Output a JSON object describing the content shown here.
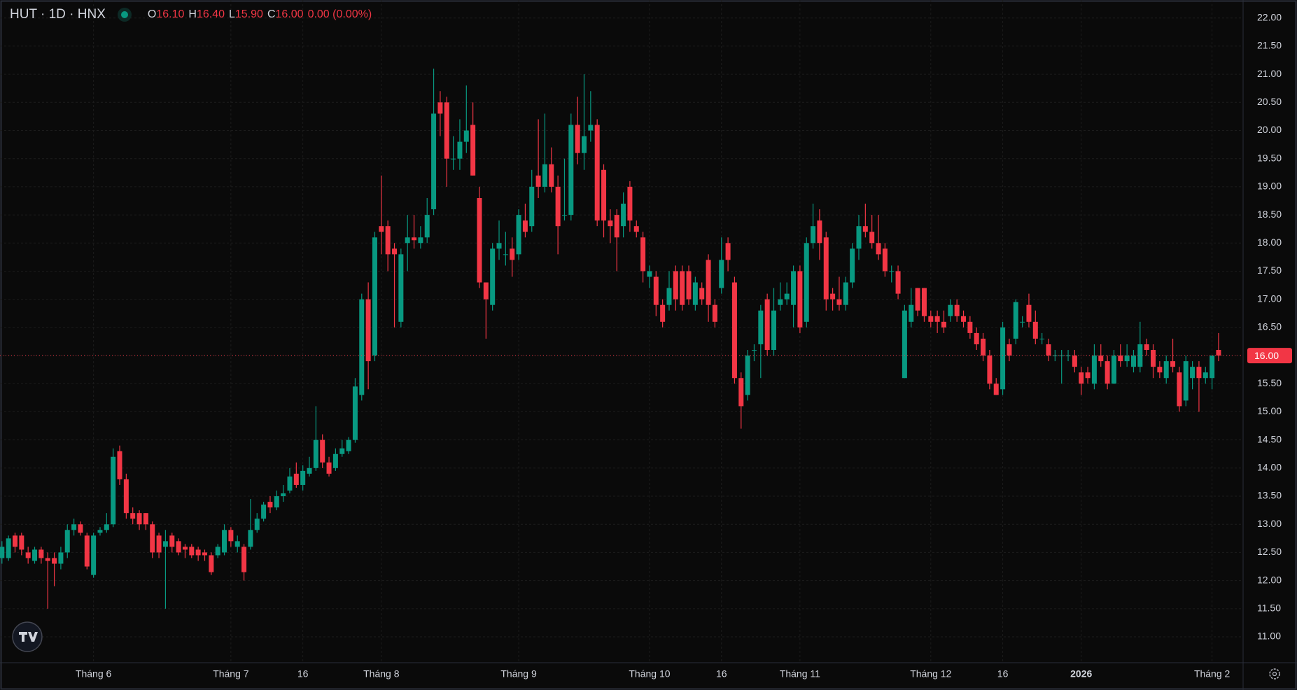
{
  "chart_data": {
    "type": "candlestick",
    "title": "HUT · 1D · HNX",
    "legend": {
      "o_label": "O",
      "open": "16.10",
      "h_label": "H",
      "high": "16.40",
      "l_label": "L",
      "low": "15.90",
      "c_label": "C",
      "close": "16.00",
      "change": "0.00 (0.00%)"
    },
    "up_color": "#089981",
    "down_color": "#f23645",
    "ylim": [
      10.54,
      22.32
    ],
    "yticks": [
      {
        "value": 11,
        "label": "11.00"
      },
      {
        "value": 11.5,
        "label": "11.50"
      },
      {
        "value": 12,
        "label": "12.00"
      },
      {
        "value": 12.5,
        "label": "12.50"
      },
      {
        "value": 13,
        "label": "13.00"
      },
      {
        "value": 13.5,
        "label": "13.50"
      },
      {
        "value": 14,
        "label": "14.00"
      },
      {
        "value": 14.5,
        "label": "14.50"
      },
      {
        "value": 15,
        "label": "15.00"
      },
      {
        "value": 15.5,
        "label": "15.50"
      },
      {
        "value": 16,
        "label": "16.00"
      },
      {
        "value": 16.5,
        "label": "16.50"
      },
      {
        "value": 17,
        "label": "17.00"
      },
      {
        "value": 17.5,
        "label": "17.50"
      },
      {
        "value": 18,
        "label": "18.00"
      },
      {
        "value": 18.5,
        "label": "18.50"
      },
      {
        "value": 19,
        "label": "19.00"
      },
      {
        "value": 19.5,
        "label": "19.50"
      },
      {
        "value": 20,
        "label": "20.00"
      },
      {
        "value": 20.5,
        "label": "20.50"
      },
      {
        "value": 21,
        "label": "21.00"
      },
      {
        "value": 21.5,
        "label": "21.50"
      },
      {
        "value": 22,
        "label": "22.00"
      }
    ],
    "grid": true,
    "last_price": {
      "value": 16,
      "label": "16.00"
    },
    "categories": [
      null,
      null,
      null,
      null,
      null,
      null,
      null,
      null,
      null,
      null,
      null,
      null,
      null,
      null,
      "Tháng 6",
      null,
      null,
      null,
      null,
      null,
      null,
      null,
      null,
      null,
      null,
      null,
      null,
      null,
      null,
      null,
      null,
      null,
      null,
      null,
      null,
      "Tháng 7",
      null,
      null,
      null,
      null,
      null,
      null,
      null,
      null,
      null,
      null,
      "16",
      null,
      null,
      null,
      null,
      null,
      null,
      null,
      null,
      null,
      null,
      null,
      "Tháng 8",
      null,
      null,
      null,
      null,
      null,
      null,
      null,
      null,
      null,
      null,
      null,
      null,
      null,
      null,
      null,
      null,
      null,
      null,
      null,
      null,
      "Tháng 9",
      null,
      null,
      null,
      null,
      null,
      null,
      null,
      null,
      null,
      null,
      null,
      null,
      null,
      null,
      null,
      null,
      null,
      null,
      null,
      "Tháng 10",
      null,
      null,
      null,
      null,
      null,
      null,
      null,
      null,
      null,
      null,
      "16",
      null,
      null,
      null,
      null,
      null,
      null,
      null,
      null,
      null,
      null,
      null,
      "Tháng 11",
      null,
      null,
      null,
      null,
      null,
      null,
      null,
      null,
      null,
      null,
      null,
      null,
      null,
      null,
      null,
      null,
      null,
      null,
      null,
      "Tháng 12",
      null,
      null,
      null,
      null,
      null,
      null,
      null,
      null,
      null,
      null,
      "16",
      null,
      null,
      null,
      null,
      null,
      null,
      null,
      null,
      null,
      null,
      null,
      "2026",
      null,
      null,
      null,
      null,
      null,
      null,
      null,
      null,
      null,
      null,
      null,
      null,
      null,
      null,
      null,
      null,
      null,
      null,
      null,
      "Tháng 2",
      null
    ],
    "open": [
      12.4,
      12.4,
      12.8,
      12.8,
      12.5,
      12.35,
      12.55,
      12.4,
      12.4,
      12.3,
      12.5,
      12.9,
      13.0,
      12.8,
      12.1,
      12.85,
      12.9,
      13.0,
      14.3,
      13.8,
      13.2,
      13.2,
      13.2,
      13.0,
      12.8,
      12.6,
      12.8,
      12.7,
      12.6,
      12.6,
      12.55,
      12.5,
      12.45,
      12.45,
      12.5,
      12.9,
      12.6,
      12.6,
      12.6,
      12.9,
      13.1,
      13.4,
      13.3,
      13.5,
      13.6,
      13.9,
      13.7,
      13.9,
      14.0,
      14.5,
      14.1,
      14.0,
      14.25,
      14.3,
      14.5,
      15.3,
      17.0,
      16.0,
      18.3,
      18.3,
      17.9,
      16.6,
      18.0,
      18.1,
      18.0,
      18.1,
      18.6,
      20.5,
      20.5,
      19.5,
      19.5,
      19.8,
      20.1,
      18.8,
      17.3,
      16.9,
      17.9,
      17.8,
      17.9,
      17.8,
      18.4,
      18.3,
      19.2,
      19.0,
      19.4,
      19.0,
      18.5,
      18.5,
      20.1,
      19.6,
      20.0,
      20.1,
      19.3,
      18.4,
      18.5,
      18.3,
      19.0,
      18.3,
      18.1,
      17.4,
      17.4,
      16.9,
      16.9,
      17.5,
      17.5,
      17.5,
      16.9,
      17.2,
      17.7,
      16.9,
      17.2,
      18.0,
      17.3,
      15.6,
      15.3,
      16.1,
      16.2,
      17.0,
      16.1,
      16.9,
      17.0,
      16.9,
      17.5,
      16.6,
      18.0,
      18.4,
      18.1,
      17.1,
      17.0,
      16.9,
      17.3,
      17.9,
      18.3,
      18.2,
      18.0,
      17.9,
      17.5,
      17.5,
      15.6,
      16.6,
      17.2,
      17.2,
      16.7,
      16.7,
      16.6,
      16.7,
      16.9,
      16.7,
      16.6,
      16.4,
      16.3,
      16.0,
      15.5,
      15.4,
      16.2,
      16.3,
      16.6,
      16.9,
      16.6,
      16.3,
      16.2,
      16.0,
      16.0,
      16.0,
      16.0,
      15.7,
      15.7,
      15.5,
      16.0,
      15.9,
      15.5,
      16.0,
      15.9,
      15.8,
      15.8,
      16.2,
      16.1,
      15.8,
      15.6,
      15.9,
      15.7,
      15.2,
      15.6,
      15.8,
      15.6,
      15.6,
      16.1
    ],
    "high": [
      12.7,
      12.8,
      12.85,
      12.85,
      12.6,
      12.6,
      12.6,
      12.5,
      12.5,
      12.6,
      13.0,
      13.1,
      13.05,
      12.85,
      12.85,
      12.95,
      13.2,
      14.35,
      14.4,
      13.9,
      13.3,
      13.25,
      13.2,
      13.05,
      12.85,
      12.9,
      12.85,
      12.75,
      12.65,
      12.65,
      12.6,
      12.55,
      12.5,
      12.65,
      13.0,
      12.95,
      12.8,
      12.65,
      13.45,
      13.2,
      13.4,
      13.5,
      13.6,
      13.7,
      14.0,
      14.1,
      14.05,
      14.2,
      15.1,
      14.6,
      14.2,
      14.35,
      14.5,
      14.55,
      15.6,
      17.1,
      17.3,
      18.2,
      19.2,
      18.4,
      18.0,
      17.9,
      18.5,
      18.5,
      18.3,
      18.8,
      21.1,
      20.7,
      20.6,
      19.9,
      20.2,
      20.8,
      20.5,
      19.0,
      17.3,
      18.0,
      18.4,
      18.2,
      18.1,
      18.6,
      18.7,
      19.3,
      20.2,
      20.3,
      19.7,
      19.2,
      19.5,
      20.3,
      20.6,
      21.0,
      20.7,
      20.2,
      19.4,
      18.6,
      18.6,
      18.9,
      19.1,
      18.4,
      18.2,
      17.6,
      17.5,
      17.0,
      17.5,
      17.6,
      17.6,
      17.6,
      17.4,
      17.3,
      17.8,
      17.0,
      18.1,
      18.1,
      17.4,
      15.7,
      16.1,
      16.2,
      16.9,
      17.1,
      17.2,
      17.3,
      17.3,
      17.6,
      17.6,
      18.1,
      18.7,
      18.6,
      18.2,
      17.2,
      17.4,
      17.4,
      18.0,
      18.5,
      18.7,
      18.5,
      18.5,
      18.0,
      17.6,
      17.6,
      16.9,
      17.2,
      17.2,
      17.2,
      16.8,
      16.8,
      16.8,
      17.0,
      17.0,
      16.8,
      16.7,
      16.5,
      16.4,
      16.1,
      15.6,
      16.6,
      16.3,
      17.0,
      16.7,
      17.1,
      16.8,
      16.4,
      16.3,
      16.1,
      16.1,
      16.1,
      16.1,
      15.8,
      15.8,
      16.2,
      16.2,
      16.0,
      16.1,
      16.2,
      16.2,
      16.1,
      16.6,
      16.3,
      16.2,
      15.9,
      16.0,
      16.3,
      15.8,
      16.0,
      15.9,
      15.9,
      15.8,
      16.0,
      16.4
    ],
    "low": [
      12.3,
      12.35,
      12.5,
      12.45,
      12.3,
      12.3,
      12.3,
      11.5,
      11.9,
      12.2,
      12.4,
      12.8,
      12.8,
      12.2,
      12.05,
      12.8,
      12.85,
      12.95,
      13.7,
      13.1,
      13.0,
      12.9,
      12.9,
      12.4,
      12.4,
      11.5,
      12.5,
      12.45,
      12.4,
      12.4,
      12.35,
      12.35,
      12.1,
      12.4,
      12.45,
      12.6,
      12.5,
      12.0,
      12.55,
      12.85,
      13.05,
      13.2,
      13.25,
      13.4,
      13.55,
      13.65,
      13.6,
      13.85,
      13.95,
      14.0,
      13.85,
      13.95,
      14.2,
      14.25,
      14.45,
      15.2,
      15.4,
      15.9,
      17.8,
      17.5,
      16.5,
      16.5,
      17.5,
      17.9,
      17.9,
      18.0,
      18.5,
      19.9,
      19.0,
      19.3,
      19.3,
      19.6,
      19.2,
      17.2,
      16.3,
      16.8,
      17.7,
      17.6,
      17.4,
      17.7,
      18.1,
      18.2,
      18.8,
      18.9,
      18.9,
      17.8,
      18.4,
      18.4,
      19.4,
      19.3,
      19.8,
      18.3,
      18.1,
      18.0,
      17.5,
      18.1,
      18.2,
      18.1,
      17.3,
      17.2,
      16.7,
      16.5,
      16.8,
      16.8,
      16.8,
      16.9,
      16.8,
      16.9,
      16.6,
      16.5,
      17.1,
      17.5,
      15.5,
      14.7,
      15.2,
      15.9,
      15.6,
      16.0,
      16.0,
      16.8,
      16.9,
      16.5,
      16.4,
      16.5,
      17.9,
      17.7,
      16.8,
      16.8,
      16.8,
      16.8,
      17.2,
      17.7,
      18.1,
      17.9,
      17.7,
      17.4,
      17.3,
      17.0,
      15.6,
      16.5,
      16.7,
      16.6,
      16.5,
      16.4,
      16.4,
      16.6,
      16.6,
      16.5,
      16.3,
      16.1,
      15.9,
      15.4,
      15.3,
      15.3,
      15.9,
      16.2,
      16.5,
      16.5,
      16.2,
      16.2,
      15.9,
      15.9,
      15.5,
      15.9,
      15.7,
      15.3,
      15.5,
      15.4,
      15.8,
      15.4,
      15.5,
      15.8,
      15.8,
      15.7,
      15.7,
      16.0,
      15.6,
      15.6,
      15.5,
      15.7,
      15.0,
      15.1,
      15.4,
      15.0,
      15.5,
      15.4,
      15.9
    ],
    "close": [
      12.6,
      12.75,
      12.6,
      12.55,
      12.4,
      12.55,
      12.4,
      12.35,
      12.3,
      12.5,
      12.9,
      13.0,
      12.85,
      12.25,
      12.8,
      12.9,
      13.0,
      14.2,
      13.8,
      13.2,
      13.1,
      13.0,
      13.0,
      12.5,
      12.5,
      12.7,
      12.6,
      12.5,
      12.55,
      12.45,
      12.45,
      12.45,
      12.15,
      12.6,
      12.9,
      12.7,
      12.7,
      12.15,
      12.9,
      13.1,
      13.35,
      13.3,
      13.5,
      13.55,
      13.85,
      13.7,
      13.95,
      14.0,
      14.5,
      14.1,
      13.9,
      14.25,
      14.35,
      14.5,
      15.45,
      17.0,
      15.9,
      18.1,
      18.2,
      17.8,
      17.8,
      17.8,
      18.1,
      18.05,
      18.1,
      18.5,
      20.3,
      20.3,
      19.5,
      19.5,
      19.8,
      20.0,
      19.2,
      17.3,
      17.0,
      17.9,
      18.0,
      17.8,
      17.7,
      18.5,
      18.2,
      19.0,
      19.0,
      19.4,
      19.0,
      18.3,
      18.5,
      20.1,
      19.6,
      19.9,
      20.1,
      18.4,
      18.4,
      18.3,
      18.1,
      18.7,
      18.4,
      18.2,
      17.5,
      17.5,
      16.9,
      16.6,
      17.2,
      17.0,
      16.9,
      17.0,
      17.3,
      17.0,
      16.9,
      16.6,
      17.7,
      17.7,
      15.6,
      15.1,
      16.0,
      16.1,
      16.8,
      16.1,
      16.8,
      17.0,
      17.1,
      17.5,
      16.5,
      18.0,
      18.3,
      18.0,
      17.0,
      17.0,
      16.9,
      17.3,
      17.9,
      18.3,
      18.2,
      18.0,
      17.8,
      17.5,
      17.5,
      17.1,
      16.8,
      16.9,
      16.8,
      16.7,
      16.6,
      16.6,
      16.5,
      16.9,
      16.7,
      16.6,
      16.4,
      16.2,
      16.0,
      15.5,
      15.3,
      16.5,
      16.0,
      16.95,
      16.6,
      16.6,
      16.3,
      16.3,
      16.0,
      16.0,
      16.0,
      16.0,
      15.8,
      15.5,
      15.6,
      16.0,
      15.9,
      15.5,
      16.0,
      15.9,
      16.0,
      16.0,
      16.2,
      16.1,
      15.8,
      15.7,
      15.9,
      15.8,
      15.1,
      15.9,
      15.8,
      15.6,
      15.7,
      16.0,
      16.0
    ]
  }
}
